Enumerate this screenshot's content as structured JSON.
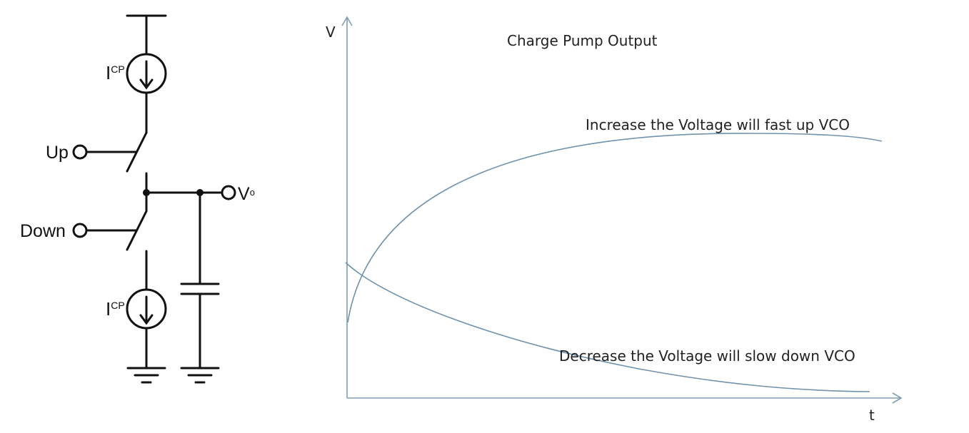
{
  "circuit": {
    "source_label_main": "I",
    "source_label_sub": "CP",
    "up_label": "Up",
    "down_label": "Down",
    "output_label_main": "V",
    "output_label_sub": "o"
  },
  "graph": {
    "title": "Charge Pump Output",
    "y_axis_label": "V",
    "x_axis_label": "t",
    "increase_annotation": "Increase the Voltage  will fast  up VCO",
    "decrease_annotation": "Decrease the Voltage  will slow down VCO",
    "colors": {
      "axis": "#7f9fb3",
      "curve": "#6f92ad",
      "wire": "#111111"
    }
  }
}
